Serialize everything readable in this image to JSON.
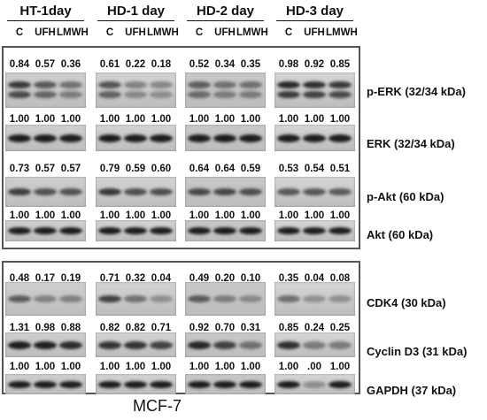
{
  "conditions": [
    {
      "title": "HT-1day",
      "lanes": [
        "C",
        "UFH",
        "LMWH"
      ]
    },
    {
      "title": "HD-1 day",
      "lanes": [
        "C",
        "UFH",
        "LMWH"
      ]
    },
    {
      "title": "HD-2 day",
      "lanes": [
        "C",
        "UFH",
        "LMWH"
      ]
    },
    {
      "title": "HD-3 day",
      "lanes": [
        "C",
        "UFH",
        "LMWH"
      ]
    }
  ],
  "blots": [
    {
      "protein": "p-ERK (32/34 kDa)",
      "values": [
        [
          "0.84",
          "0.57",
          "0.36"
        ],
        [
          "0.61",
          "0.22",
          "0.18"
        ],
        [
          "0.52",
          "0.34",
          "0.35"
        ],
        [
          "0.98",
          "0.92",
          "0.85"
        ]
      ]
    },
    {
      "protein": "ERK (32/34 kDa)",
      "values": [
        [
          "1.00",
          "1.00",
          "1.00"
        ],
        [
          "1.00",
          "1.00",
          "1.00"
        ],
        [
          "1.00",
          "1.00",
          "1.00"
        ],
        [
          "1.00",
          "1.00",
          "1.00"
        ]
      ]
    },
    {
      "protein": "p-Akt  (60 kDa)",
      "values": [
        [
          "0.73",
          "0.57",
          "0.57"
        ],
        [
          "0.79",
          "0.59",
          "0.60"
        ],
        [
          "0.64",
          "0.64",
          "0.59"
        ],
        [
          "0.53",
          "0.54",
          "0.51"
        ]
      ]
    },
    {
      "protein": "Akt (60 kDa)",
      "values": [
        [
          "1.00",
          "1.00",
          "1.00"
        ],
        [
          "1.00",
          "1.00",
          "1.00"
        ],
        [
          "1.00",
          "1.00",
          "1.00"
        ],
        [
          "1.00",
          "1.00",
          "1.00"
        ]
      ]
    },
    {
      "protein": "CDK4 (30 kDa)",
      "values": [
        [
          "0.48",
          "0.17",
          "0.19"
        ],
        [
          "0.71",
          "0.32",
          "0.04"
        ],
        [
          "0.49",
          "0.20",
          "0.10"
        ],
        [
          "0.35",
          "0.04",
          "0.08"
        ]
      ]
    },
    {
      "protein": "Cyclin D3 (31 kDa)",
      "values": [
        [
          "1.31",
          "0.98",
          "0.88"
        ],
        [
          "0.82",
          "0.82",
          "0.71"
        ],
        [
          "0.92",
          "0.70",
          "0.31"
        ],
        [
          "0.85",
          "0.24",
          "0.25"
        ]
      ]
    },
    {
      "protein": "GAPDH (37 kDa)",
      "values": [
        [
          "1.00",
          "1.00",
          "1.00"
        ],
        [
          "1.00",
          "1.00",
          "1.00"
        ],
        [
          "1.00",
          "1.00",
          "1.00"
        ],
        [
          "1.00",
          ".00",
          "1.00"
        ]
      ]
    }
  ],
  "caption": "MCF-7"
}
